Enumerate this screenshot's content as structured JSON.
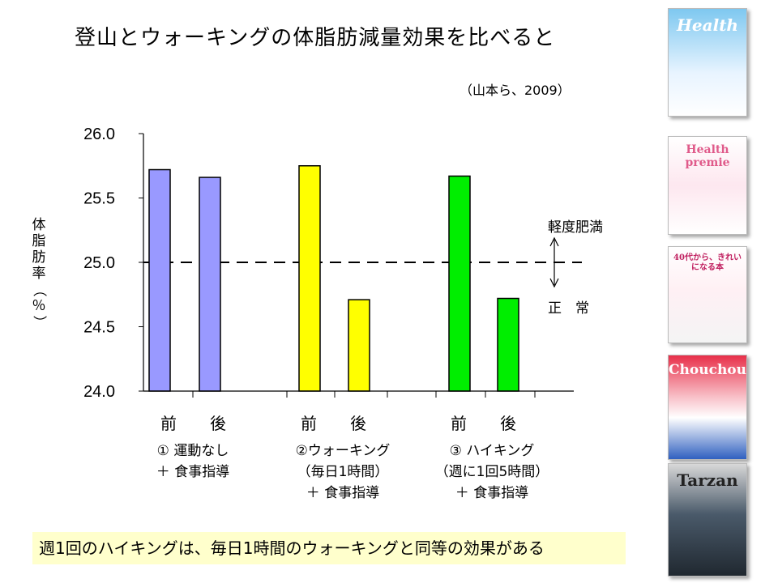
{
  "title": "登山とウォーキングの体脂肪減量効果を比べると",
  "citation": "（山本ら、2009）",
  "y_axis_label": [
    "体",
    "脂",
    "肪",
    "率",
    "（",
    "％",
    "）"
  ],
  "zone_labels": {
    "upper": "軽度肥満",
    "lower": "正　常"
  },
  "conclusion": "週1回のハイキングは、毎日1時間のウォーキングと同等の効果がある",
  "groups": [
    {
      "bars": [
        "前",
        "後"
      ],
      "caption": [
        "① 運動なし",
        "＋ 食事指導"
      ]
    },
    {
      "bars": [
        "前",
        "後"
      ],
      "caption": [
        "②ウォーキング",
        "（毎日1時間）",
        "＋ 食事指導"
      ]
    },
    {
      "bars": [
        "前",
        "後"
      ],
      "caption": [
        "③ ハイキング",
        "（週に1回5時間）",
        "＋ 食事指導"
      ]
    }
  ],
  "magazines": [
    "Health",
    "Health premie",
    "40代から、きれいになる本",
    "Chouchou",
    "Tarzan"
  ],
  "chart_data": {
    "type": "bar",
    "ylim": [
      24.0,
      26.0
    ],
    "yticks": [
      "24.0",
      "24.5",
      "25.0",
      "25.5",
      "26.0"
    ],
    "reference_line": 25.0,
    "grid": false,
    "series": [
      {
        "color": "#9999ff",
        "values": [
          25.72,
          25.66
        ]
      },
      {
        "color": "#ffff00",
        "values": [
          25.75,
          24.71
        ]
      },
      {
        "color": "#00ee00",
        "values": [
          25.67,
          24.72
        ]
      }
    ]
  }
}
